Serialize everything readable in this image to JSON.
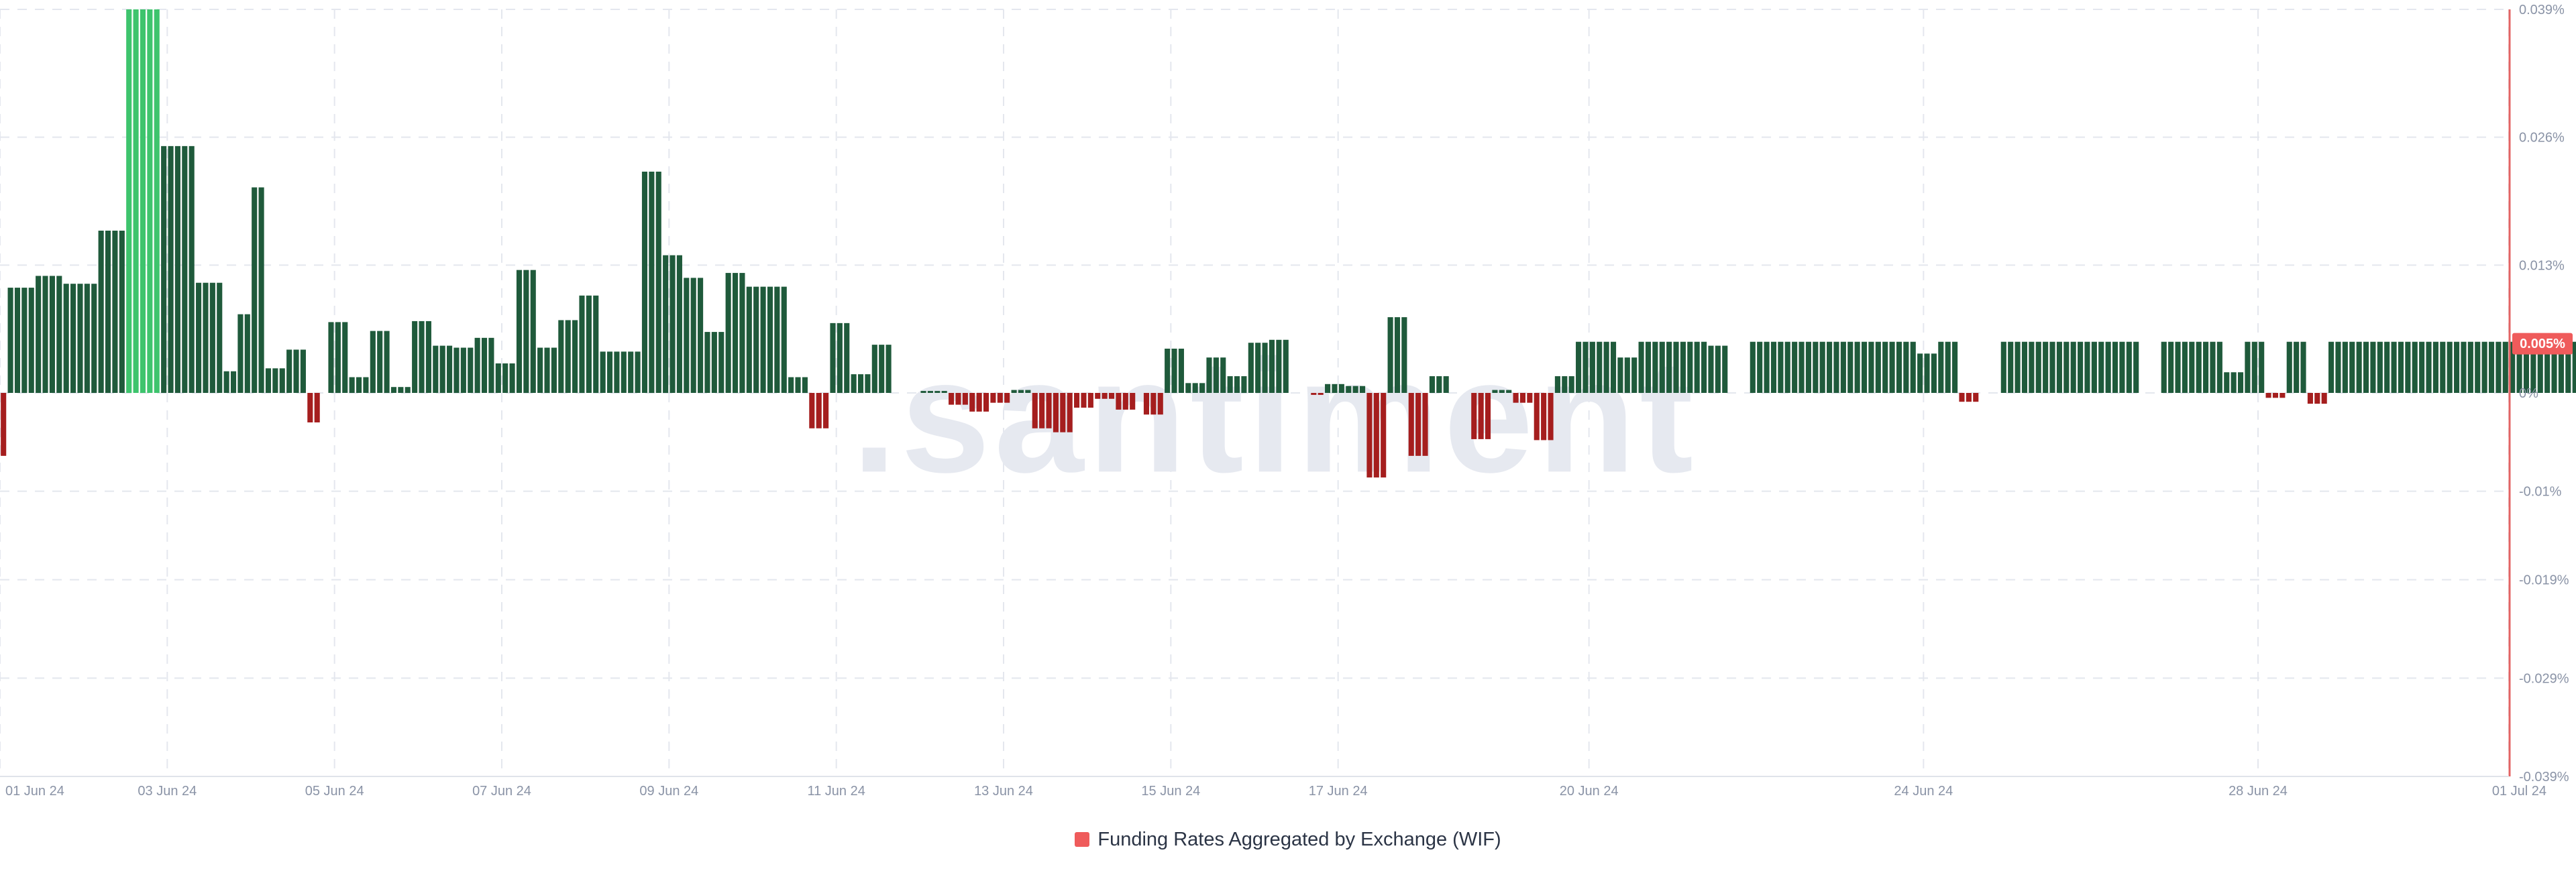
{
  "watermark": ".santiment",
  "legend": {
    "label": "Funding Rates Aggregated by Exchange (WIF)",
    "swatch_color": "#ef5b5b"
  },
  "current_value": {
    "label": "0.005%",
    "value": 0.005,
    "color": "#ef5b5b"
  },
  "colors": {
    "positive": "#1f5a3b",
    "positive_highlight": "#3ec46d",
    "negative": "#a51e1e",
    "grid": "#e4e7ee",
    "axis": "#e36464"
  },
  "chart_data": {
    "type": "bar",
    "title": "",
    "xlabel": "",
    "ylabel": "",
    "series": [
      {
        "name": "Funding Rates Aggregated by Exchange (WIF)",
        "start": "2024-06-01T00:00",
        "interval_hours": 2,
        "values": [
          -0.0064,
          0.0107,
          0.0107,
          0.0107,
          0.0107,
          0.0119,
          0.0119,
          0.0119,
          0.0119,
          0.0111,
          0.0111,
          0.0111,
          0.0111,
          0.0111,
          0.0165,
          0.0165,
          0.0165,
          0.0165,
          0.039,
          0.039,
          0.039,
          0.039,
          0.039,
          0.0251,
          0.0251,
          0.0251,
          0.0251,
          0.0251,
          0.0112,
          0.0112,
          0.0112,
          0.0112,
          0.0022,
          0.0022,
          0.008,
          0.008,
          0.0209,
          0.0209,
          0.0025,
          0.0025,
          0.0025,
          0.0044,
          0.0044,
          0.0044,
          -0.003,
          -0.003,
          0,
          0.0072,
          0.0072,
          0.0072,
          0.0016,
          0.0016,
          0.0016,
          0.0063,
          0.0063,
          0.0063,
          0.0006,
          0.0006,
          0.0006,
          0.0073,
          0.0073,
          0.0073,
          0.0048,
          0.0048,
          0.0048,
          0.0046,
          0.0046,
          0.0046,
          0.0056,
          0.0056,
          0.0056,
          0.003,
          0.003,
          0.003,
          0.0125,
          0.0125,
          0.0125,
          0.0046,
          0.0046,
          0.0046,
          0.0074,
          0.0074,
          0.0074,
          0.0099,
          0.0099,
          0.0099,
          0.0042,
          0.0042,
          0.0042,
          0.0042,
          0.0042,
          0.0042,
          0.0225,
          0.0225,
          0.0225,
          0.014,
          0.014,
          0.014,
          0.0117,
          0.0117,
          0.0117,
          0.0062,
          0.0062,
          0.0062,
          0.0122,
          0.0122,
          0.0122,
          0.0108,
          0.0108,
          0.0108,
          0.0108,
          0.0108,
          0.0108,
          0.0016,
          0.0016,
          0.0016,
          -0.0036,
          -0.0036,
          -0.0036,
          0.0071,
          0.0071,
          0.0071,
          0.0019,
          0.0019,
          0.0019,
          0.0049,
          0.0049,
          0.0049,
          0,
          0,
          0,
          0,
          0.0002,
          0.0002,
          0.0002,
          0.0002,
          -0.0012,
          -0.0012,
          -0.0012,
          -0.0019,
          -0.0019,
          -0.0019,
          -0.001,
          -0.001,
          -0.001,
          0.0003,
          0.0003,
          0.0003,
          -0.0036,
          -0.0036,
          -0.0036,
          -0.004,
          -0.004,
          -0.004,
          -0.0015,
          -0.0015,
          -0.0015,
          -0.0006,
          -0.0006,
          -0.0006,
          -0.0017,
          -0.0017,
          -0.0017,
          0,
          -0.0022,
          -0.0022,
          -0.0022,
          0.0045,
          0.0045,
          0.0045,
          0.001,
          0.001,
          0.001,
          0.0036,
          0.0036,
          0.0036,
          0.0017,
          0.0017,
          0.0017,
          0.0051,
          0.0051,
          0.0051,
          0.0054,
          0.0054,
          0.0054,
          0,
          0,
          0,
          -0.0002,
          -0.0002,
          0.0009,
          0.0009,
          0.0009,
          0.0007,
          0.0007,
          0.0007,
          -0.0086,
          -0.0086,
          -0.0086,
          0.0077,
          0.0077,
          0.0077,
          -0.0064,
          -0.0064,
          -0.0064,
          0.0017,
          0.0017,
          0.0017,
          0,
          0,
          0,
          -0.0047,
          -0.0047,
          -0.0047,
          0.0003,
          0.0003,
          0.0003,
          -0.001,
          -0.001,
          -0.001,
          -0.0048,
          -0.0048,
          -0.0048,
          0.0017,
          0.0017,
          0.0017,
          0.0052,
          0.0052,
          0.0052,
          0.0052,
          0.0052,
          0.0052,
          0.0036,
          0.0036,
          0.0036,
          0.0052,
          0.0052,
          0.0052,
          0.0052,
          0.0052,
          0.0052,
          0.0052,
          0.0052,
          0.0052,
          0.0052,
          0.0048,
          0.0048,
          0.0048,
          0,
          0,
          0,
          0.0052,
          0.0052,
          0.0052,
          0.0052,
          0.0052,
          0.0052,
          0.0052,
          0.0052,
          0.0052,
          0.0052,
          0.0052,
          0.0052,
          0.0052,
          0.0052,
          0.0052,
          0.0052,
          0.0052,
          0.0052,
          0.0052,
          0.0052,
          0.0052,
          0.0052,
          0.0052,
          0.0052,
          0.004,
          0.004,
          0.004,
          0.0052,
          0.0052,
          0.0052,
          -0.0009,
          -0.0009,
          -0.0009,
          0,
          0,
          0,
          0.0052,
          0.0052,
          0.0052,
          0.0052,
          0.0052,
          0.0052,
          0.0052,
          0.0052,
          0.0052,
          0.0052,
          0.0052,
          0.0052,
          0.0052,
          0.0052,
          0.0052,
          0.0052,
          0.0052,
          0.0052,
          0.0052,
          0.0052,
          0,
          0,
          0,
          0.0052,
          0.0052,
          0.0052,
          0.0052,
          0.0052,
          0.0052,
          0.0052,
          0.0052,
          0.0052,
          0.0021,
          0.0021,
          0.0021,
          0.0052,
          0.0052,
          0.0052,
          -0.0005,
          -0.0005,
          -0.0005,
          0.0052,
          0.0052,
          0.0052,
          -0.0011,
          -0.0011,
          -0.0011,
          0.0052,
          0.0052,
          0.0052,
          0.0052,
          0.0052,
          0.0052,
          0.0052,
          0.0052,
          0.0052,
          0.0052,
          0.0052,
          0.0052,
          0.0052,
          0.0052,
          0.0052,
          0.0052,
          0.0052,
          0.0052,
          0.0052,
          0.0052,
          0.0052,
          0.0052,
          0.0052,
          0.0052,
          0.0052,
          0.0052,
          0.0052,
          0.0052,
          0.0052,
          0.0052,
          0.0052,
          0.0052,
          0.0052,
          0.0052,
          0.0052,
          0.0052,
          0.0052,
          0.0052,
          0.0052,
          0.0052,
          0.0052,
          0.0052,
          0.0052,
          0.0052,
          0.0052,
          0.0052,
          0.0052,
          0.0052,
          -0.0057,
          0.0034,
          0.0034,
          0.0034,
          0.0052,
          0.0052,
          0.0052,
          -0.0027,
          -0.0027,
          -0.0027,
          0,
          0,
          0,
          0,
          0,
          0,
          0.0052,
          0.0052,
          0.0052,
          0.0052,
          0.0052,
          0.0052,
          0.0052,
          0.0052,
          0.0052,
          0.0052,
          0.0052,
          0.0052,
          -0.0027,
          -0.0027,
          -0.0027,
          0.0048,
          0.0048,
          0.0048,
          0.0037,
          0.0037,
          0.0037,
          -0.0026,
          -0.0026,
          -0.0026,
          0.0052,
          0.0052,
          0.0052,
          0.0052,
          0.0052,
          0.0052,
          0.0052,
          0.0052,
          0.0052,
          0.0052,
          0.0052,
          0.0052,
          0.0052,
          0.0052,
          0.0052,
          0.0052,
          0.0052,
          0.0052,
          0.0052,
          0.0052,
          0.0052,
          0.0052,
          0.0052,
          0.0052,
          0.0052,
          0.0052,
          0.0052
        ]
      }
    ],
    "highlight_range": [
      18,
      22
    ],
    "y_axis": {
      "ylim": [
        -0.039,
        0.039
      ],
      "ticks": [
        0.039,
        0.026,
        0.013,
        0,
        -0.01,
        -0.019,
        -0.029,
        -0.039
      ],
      "tick_labels": [
        "0.039%",
        "0.026%",
        "0.013%",
        "0%",
        "-0.01%",
        "-0.019%",
        "-0.029%",
        "-0.039%"
      ]
    },
    "x_axis": {
      "range": [
        "2024-06-01T00:00",
        "2024-07-01T00:00"
      ],
      "ticks": [
        "2024-06-01",
        "2024-06-03",
        "2024-06-05",
        "2024-06-07",
        "2024-06-09",
        "2024-06-11",
        "2024-06-13",
        "2024-06-15",
        "2024-06-17",
        "2024-06-20",
        "2024-06-24",
        "2024-06-28",
        "2024-07-01"
      ],
      "tick_labels": [
        "01 Jun 24",
        "03 Jun 24",
        "05 Jun 24",
        "07 Jun 24",
        "09 Jun 24",
        "11 Jun 24",
        "13 Jun 24",
        "15 Jun 24",
        "17 Jun 24",
        "20 Jun 24",
        "24 Jun 24",
        "28 Jun 24",
        "01 Jul 24"
      ]
    },
    "grid": true,
    "legend_position": "bottom-center"
  }
}
